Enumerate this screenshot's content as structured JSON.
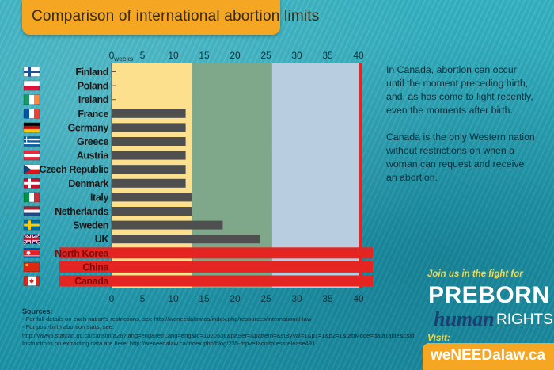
{
  "title": "Comparison of international abortion limits",
  "chart_data": {
    "type": "bar",
    "orientation": "horizontal",
    "title": "Comparison of international abortion limits",
    "xlabel": "weeks",
    "xlim": [
      0,
      40
    ],
    "ticks": [
      0,
      5,
      10,
      15,
      20,
      25,
      30,
      35,
      40
    ],
    "zones": [
      {
        "name": "first-trimester",
        "from": 0,
        "to": 13,
        "color": "#fde08d"
      },
      {
        "name": "second-trimester",
        "from": 13,
        "to": 26,
        "color": "#7fa88a"
      },
      {
        "name": "third-trimester",
        "from": 26,
        "to": 40,
        "color": "#b9cde0"
      }
    ],
    "categories": [
      "Finland",
      "Poland",
      "Ireland",
      "France",
      "Germany",
      "Greece",
      "Austria",
      "Czech Republic",
      "Denmark",
      "Italy",
      "Netherlands",
      "Sweden",
      "UK",
      "North Korea",
      "China",
      "Canada"
    ],
    "values": [
      0,
      0,
      0,
      12,
      12,
      12,
      12,
      12,
      12,
      13,
      13,
      18,
      24,
      40,
      40,
      40
    ],
    "unrestricted": [
      false,
      false,
      false,
      false,
      false,
      false,
      false,
      false,
      false,
      false,
      false,
      false,
      false,
      true,
      true,
      true
    ],
    "colors": {
      "bar": "#4f4f4f",
      "unrestricted": "#e52521",
      "limit_line": "#e52521"
    }
  },
  "flags": [
    "finland-flag",
    "poland-flag",
    "ireland-flag",
    "france-flag",
    "germany-flag",
    "greece-flag",
    "austria-flag",
    "czech-flag",
    "denmark-flag",
    "italy-flag",
    "netherlands-flag",
    "sweden-flag",
    "uk-flag",
    "north-korea-flag",
    "china-flag",
    "canada-flag"
  ],
  "right_text": {
    "p1": "In Canada, abortion can occur until the moment preceding birth, and, as has come to light recently, even the moments after birth.",
    "p2": "Canada is the only Western nation without restrictions on when a woman can request and receive an abortion."
  },
  "promo": {
    "join": "Join us in the fight for",
    "logo_top": "PREBORN",
    "logo_human": "human",
    "logo_rights": "RIGHTS",
    "visit": "Visit:",
    "url": "weNEEDalaw.ca"
  },
  "sources": {
    "heading": "Sources:",
    "line1": "- For full details on each nation's restrictions, see http://weneedalaw.ca/index.php/resources/international-law",
    "line2": "- For post-birth abortion stats, see:",
    "line3": "http://www5.statcan.gc.ca/cansim/a26?lang=eng&retrLang=eng&id=1020536&paSer=&pattern=&stByVal=1&p1=1&p2=1&tabMode=dataTable&csid",
    "line4": "Instructions on extracting data are here: http://weneedalaw.ca/index.php/blog/235-mpvellacottpressrelease491"
  }
}
